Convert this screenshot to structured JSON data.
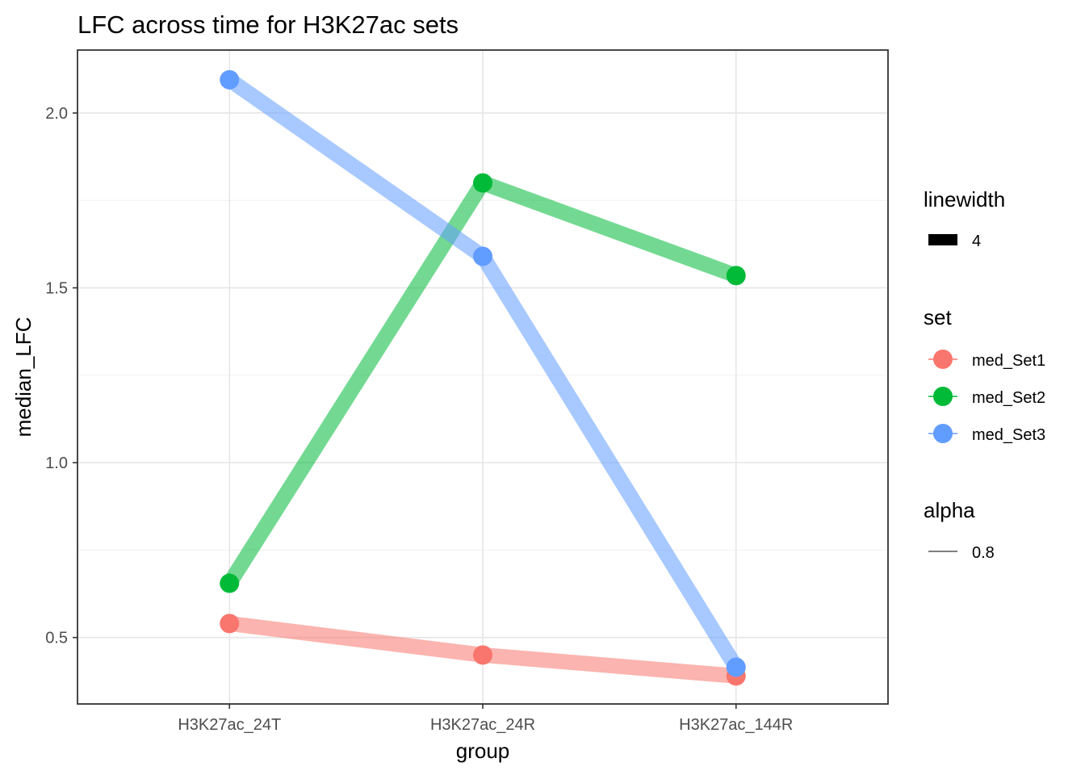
{
  "chart_data": {
    "type": "line",
    "title": "LFC across time for H3K27ac sets",
    "xlabel": "group",
    "ylabel": "median_LFC",
    "categories": [
      "H3K27ac_24T",
      "H3K27ac_24R",
      "H3K27ac_144R"
    ],
    "ylim": [
      0.31,
      2.18
    ],
    "yticks": [
      0.5,
      1.0,
      1.5,
      2.0
    ],
    "ytick_labels": [
      "0.5",
      "1.0",
      "1.5",
      "2.0"
    ],
    "grid": true,
    "legend_position": "right",
    "series": [
      {
        "name": "med_Set1",
        "color": "#F8766D",
        "values": [
          0.54,
          0.45,
          0.39
        ]
      },
      {
        "name": "med_Set2",
        "color": "#00BA38",
        "values": [
          0.655,
          1.8,
          1.535
        ]
      },
      {
        "name": "med_Set3",
        "color": "#619CFF",
        "values": [
          2.095,
          1.59,
          0.415
        ]
      }
    ],
    "legends": {
      "linewidth": {
        "title": "linewidth",
        "label": "4"
      },
      "set": {
        "title": "set"
      },
      "alpha": {
        "title": "alpha",
        "label": "0.8"
      }
    }
  }
}
